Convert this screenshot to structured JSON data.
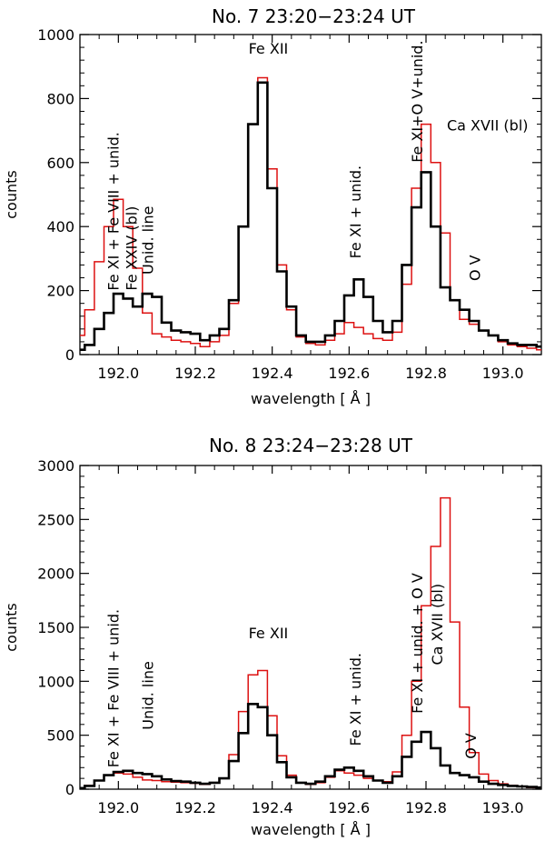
{
  "chart_data": [
    {
      "type": "line",
      "title": "No. 7   23:20−23:24 UT",
      "xlabel": "wavelength [ Å ]",
      "ylabel": "counts",
      "xlim": [
        191.9,
        193.1
      ],
      "ylim": [
        0,
        1000
      ],
      "xticks": [
        192.0,
        192.2,
        192.4,
        192.6,
        192.8,
        193.0
      ],
      "xtick_labels": [
        "192.0",
        "192.2",
        "192.4",
        "192.6",
        "192.8",
        "193.0"
      ],
      "yticks": [
        0,
        200,
        400,
        600,
        800,
        1000
      ],
      "ytick_labels": [
        "0",
        "200",
        "400",
        "600",
        "800",
        "1000"
      ],
      "series": [
        {
          "name": "black",
          "color": "#000000",
          "x": [
            191.9,
            191.925,
            191.95,
            191.975,
            192.0,
            192.025,
            192.05,
            192.075,
            192.1,
            192.125,
            192.15,
            192.175,
            192.2,
            192.225,
            192.25,
            192.275,
            192.3,
            192.325,
            192.35,
            192.375,
            192.4,
            192.425,
            192.45,
            192.475,
            192.5,
            192.525,
            192.55,
            192.575,
            192.6,
            192.625,
            192.65,
            192.675,
            192.7,
            192.725,
            192.75,
            192.775,
            192.8,
            192.825,
            192.85,
            192.875,
            192.9,
            192.925,
            192.95,
            192.975,
            193.0,
            193.025,
            193.05,
            193.075,
            193.1
          ],
          "y": [
            15,
            30,
            80,
            130,
            190,
            175,
            150,
            190,
            180,
            100,
            75,
            70,
            65,
            45,
            60,
            80,
            170,
            400,
            720,
            850,
            520,
            260,
            150,
            60,
            40,
            40,
            60,
            105,
            185,
            235,
            180,
            105,
            70,
            105,
            280,
            460,
            570,
            400,
            210,
            170,
            140,
            105,
            75,
            60,
            45,
            35,
            30,
            30,
            25
          ]
        },
        {
          "name": "red",
          "color": "#dd1111",
          "x": [
            191.9,
            191.925,
            191.95,
            191.975,
            192.0,
            192.025,
            192.05,
            192.075,
            192.1,
            192.125,
            192.15,
            192.175,
            192.2,
            192.225,
            192.25,
            192.275,
            192.3,
            192.325,
            192.35,
            192.375,
            192.4,
            192.425,
            192.45,
            192.475,
            192.5,
            192.525,
            192.55,
            192.575,
            192.6,
            192.625,
            192.65,
            192.675,
            192.7,
            192.725,
            192.75,
            192.775,
            192.8,
            192.825,
            192.85,
            192.875,
            192.9,
            192.925,
            192.95,
            192.975,
            193.0,
            193.025,
            193.05,
            193.075,
            193.1
          ],
          "y": [
            60,
            140,
            290,
            400,
            485,
            400,
            270,
            130,
            65,
            55,
            45,
            40,
            35,
            25,
            40,
            60,
            160,
            400,
            720,
            865,
            580,
            280,
            140,
            55,
            35,
            30,
            45,
            65,
            100,
            85,
            65,
            50,
            45,
            70,
            220,
            520,
            720,
            600,
            380,
            170,
            110,
            95,
            75,
            60,
            40,
            30,
            25,
            20,
            15
          ]
        }
      ],
      "annotations": [
        {
          "text": "Fe XI + Fe VIII + unid.",
          "x": 192.0,
          "y": 200,
          "color": "#000000",
          "rotate": true
        },
        {
          "text": "Fe XXIV (bl)",
          "x": 192.0,
          "y": 200,
          "color": "#dd1111",
          "rotate": true
        },
        {
          "text": "Unid. line",
          "x": 192.09,
          "y": 250,
          "color": "#000000",
          "rotate": true
        },
        {
          "text": "Fe XII",
          "x": 192.39,
          "y": 940,
          "color": "#000000",
          "rotate": false
        },
        {
          "text": "Fe XI + unid.",
          "x": 192.63,
          "y": 300,
          "color": "#000000",
          "rotate": true
        },
        {
          "text": "Fe XI+O V+unid.",
          "x": 192.79,
          "y": 600,
          "color": "#000000",
          "rotate": true
        },
        {
          "text": "Ca XVII (bl)",
          "x": 192.96,
          "y": 700,
          "color": "#dd1111",
          "rotate": false
        },
        {
          "text": "O V",
          "x": 192.94,
          "y": 230,
          "color": "#000000",
          "rotate": true
        }
      ]
    },
    {
      "type": "line",
      "title": "No. 8 23:24−23:28 UT",
      "xlabel": "wavelength [ Å ]",
      "ylabel": "counts",
      "xlim": [
        191.9,
        193.1
      ],
      "ylim": [
        0,
        3000
      ],
      "xticks": [
        192.0,
        192.2,
        192.4,
        192.6,
        192.8,
        193.0
      ],
      "xtick_labels": [
        "192.0",
        "192.2",
        "192.4",
        "192.6",
        "192.8",
        "193.0"
      ],
      "yticks": [
        0,
        500,
        1000,
        1500,
        2000,
        2500,
        3000
      ],
      "ytick_labels": [
        "0",
        "500",
        "1000",
        "1500",
        "2000",
        "2500",
        "3000"
      ],
      "series": [
        {
          "name": "black",
          "color": "#000000",
          "x": [
            191.9,
            191.925,
            191.95,
            191.975,
            192.0,
            192.025,
            192.05,
            192.075,
            192.1,
            192.125,
            192.15,
            192.175,
            192.2,
            192.225,
            192.25,
            192.275,
            192.3,
            192.325,
            192.35,
            192.375,
            192.4,
            192.425,
            192.45,
            192.475,
            192.5,
            192.525,
            192.55,
            192.575,
            192.6,
            192.625,
            192.65,
            192.675,
            192.7,
            192.725,
            192.75,
            192.775,
            192.8,
            192.825,
            192.85,
            192.875,
            192.9,
            192.925,
            192.95,
            192.975,
            193.0,
            193.025,
            193.05,
            193.075,
            193.1
          ],
          "y": [
            10,
            30,
            80,
            130,
            160,
            170,
            150,
            140,
            120,
            90,
            75,
            70,
            60,
            50,
            60,
            100,
            260,
            520,
            790,
            760,
            500,
            250,
            110,
            60,
            50,
            70,
            120,
            180,
            200,
            170,
            120,
            80,
            60,
            120,
            300,
            440,
            530,
            380,
            220,
            150,
            130,
            110,
            70,
            50,
            40,
            30,
            25,
            20,
            15
          ]
        },
        {
          "name": "red",
          "color": "#dd1111",
          "x": [
            191.9,
            191.925,
            191.95,
            191.975,
            192.0,
            192.025,
            192.05,
            192.075,
            192.1,
            192.125,
            192.15,
            192.175,
            192.2,
            192.225,
            192.25,
            192.275,
            192.3,
            192.325,
            192.35,
            192.375,
            192.4,
            192.425,
            192.45,
            192.475,
            192.5,
            192.525,
            192.55,
            192.575,
            192.6,
            192.625,
            192.65,
            192.675,
            192.7,
            192.725,
            192.75,
            192.775,
            192.8,
            192.825,
            192.85,
            192.875,
            192.9,
            192.925,
            192.95,
            192.975,
            193.0,
            193.025,
            193.05,
            193.075,
            193.1
          ],
          "y": [
            15,
            35,
            80,
            130,
            150,
            140,
            110,
            85,
            80,
            70,
            65,
            60,
            55,
            45,
            60,
            100,
            320,
            720,
            1060,
            1100,
            680,
            310,
            130,
            60,
            45,
            60,
            110,
            170,
            150,
            130,
            100,
            80,
            70,
            160,
            500,
            1000,
            1700,
            2250,
            2700,
            1550,
            760,
            340,
            140,
            80,
            50,
            35,
            25,
            15,
            10
          ]
        }
      ],
      "annotations": [
        {
          "text": "Fe XI + Fe VIII + unid.",
          "x": 192.0,
          "y": 200,
          "color": "#000000",
          "rotate": true
        },
        {
          "text": "Unid. line",
          "x": 192.09,
          "y": 550,
          "color": "#000000",
          "rotate": true
        },
        {
          "text": "Fe XII",
          "x": 192.39,
          "y": 1400,
          "color": "#000000",
          "rotate": false
        },
        {
          "text": "Fe XI + unid.",
          "x": 192.63,
          "y": 400,
          "color": "#000000",
          "rotate": true
        },
        {
          "text": "Fe XI + unid. + O V",
          "x": 192.79,
          "y": 700,
          "color": "#000000",
          "rotate": true
        },
        {
          "text": "Ca XVII (bl)",
          "x": 192.79,
          "y": 1150,
          "color": "#dd1111",
          "rotate": true
        },
        {
          "text": "O V",
          "x": 192.93,
          "y": 280,
          "color": "#000000",
          "rotate": true
        }
      ]
    }
  ]
}
